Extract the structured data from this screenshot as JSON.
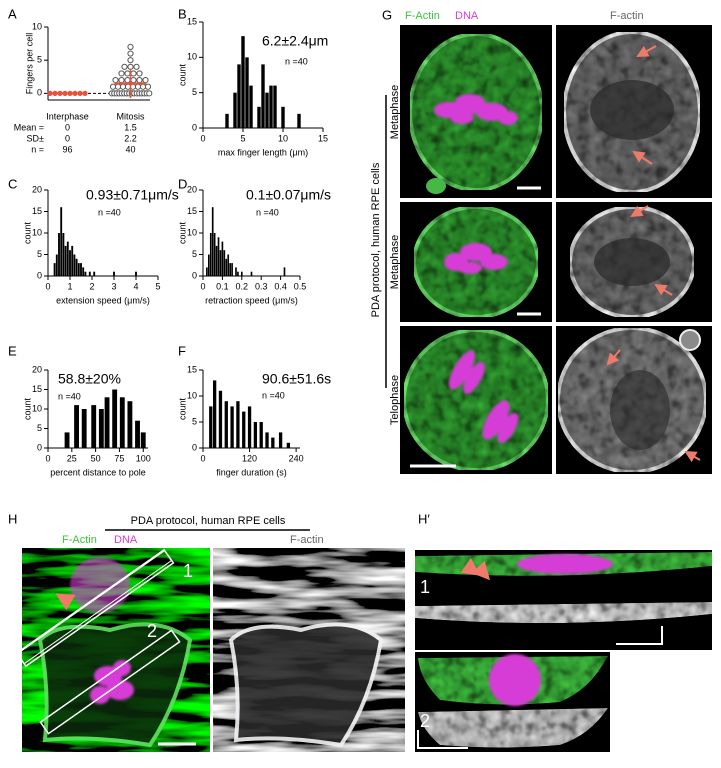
{
  "chart_data": [
    {
      "type": "dot",
      "panel": "A",
      "ylabel": "Fingers per cell",
      "categories": [
        "Interphase",
        "Mitosis"
      ],
      "values": [
        [
          0,
          0,
          0,
          0,
          0,
          0,
          0,
          0
        ],
        [
          0,
          0,
          0,
          0,
          0,
          0,
          0,
          0,
          0,
          0,
          0,
          0,
          0,
          0,
          0,
          0,
          1,
          1,
          1,
          1,
          1,
          1,
          1,
          1,
          2,
          2,
          2,
          2,
          2,
          2,
          3,
          3,
          3,
          3,
          4,
          4,
          4,
          5,
          6,
          7
        ]
      ],
      "colors": [
        "#e5533d",
        "#555555"
      ],
      "mean_color": "#e5533d",
      "stat_labels": [
        "Mean =",
        "SD±",
        "n ="
      ],
      "mean": [
        0,
        1.5
      ],
      "sd": [
        0,
        2.2
      ],
      "n": [
        96,
        40
      ],
      "hline": 0,
      "ylim": [
        -1,
        10
      ],
      "yticks": [
        0,
        5,
        10
      ]
    },
    {
      "type": "histogram",
      "panel": "B",
      "annotation": "6.2±2.4μm",
      "n_label": "n =40",
      "xlabel": "max finger length (μm)",
      "ylabel": "count",
      "color": "#000000",
      "x": [
        3,
        4,
        4.5,
        5,
        5.5,
        6,
        7,
        7.5,
        8,
        8.5,
        9,
        10,
        12
      ],
      "values": [
        2,
        5,
        9,
        13,
        10,
        6,
        3,
        9,
        5,
        6,
        6,
        3,
        2
      ],
      "xlim": [
        0,
        15
      ],
      "xticks": [
        0,
        5,
        10,
        15
      ],
      "ylim": [
        0,
        15
      ],
      "yticks": [
        0,
        5,
        10,
        15
      ]
    },
    {
      "type": "histogram",
      "panel": "C",
      "annotation": "0.93±0.71μm/s",
      "n_label": "n =40",
      "xlabel": "extension speed (μm/s)",
      "ylabel": "count",
      "color": "#000000",
      "x": [
        0.3,
        0.4,
        0.5,
        0.6,
        0.7,
        0.8,
        0.9,
        1.0,
        1.1,
        1.2,
        1.3,
        1.4,
        1.5,
        1.6,
        1.7,
        1.9,
        2.1,
        3.0,
        4.0
      ],
      "values": [
        3,
        5,
        10,
        16,
        10,
        7,
        8,
        6,
        7,
        5,
        4,
        3,
        3,
        2,
        1,
        1,
        1,
        1,
        1
      ],
      "xlim": [
        0,
        5
      ],
      "xticks": [
        0,
        1,
        2,
        3,
        4,
        5
      ],
      "ylim": [
        0,
        20
      ],
      "yticks": [
        0,
        5,
        10,
        15,
        20
      ]
    },
    {
      "type": "histogram",
      "panel": "D",
      "annotation": "0.1±0.07μm/s",
      "n_label": "n =40",
      "xlabel": "retraction speed (μm/s)",
      "ylabel": "count",
      "color": "#000000",
      "x": [
        0.02,
        0.03,
        0.04,
        0.05,
        0.06,
        0.07,
        0.08,
        0.09,
        0.1,
        0.11,
        0.12,
        0.13,
        0.14,
        0.15,
        0.17,
        0.18,
        0.2,
        0.25,
        0.42
      ],
      "values": [
        2,
        5,
        10,
        16,
        10,
        7,
        9,
        6,
        8,
        6,
        4,
        5,
        3,
        3,
        2,
        1,
        1,
        1,
        2
      ],
      "xlim": [
        0,
        0.5
      ],
      "xticks": [
        0,
        0.1,
        0.2,
        0.3,
        0.4,
        0.5
      ],
      "ylim": [
        0,
        20
      ],
      "yticks": [
        0,
        5,
        10,
        15,
        20
      ]
    },
    {
      "type": "histogram",
      "panel": "E",
      "annotation": "58.8±20%",
      "n_label": "n =40",
      "xlabel": "percent distance to pole",
      "ylabel": "count",
      "color": "#000000",
      "x": [
        20,
        30,
        38,
        48,
        56,
        62,
        70,
        78,
        86,
        94,
        100
      ],
      "values": [
        4,
        11,
        10,
        11,
        10,
        13,
        15,
        13,
        12,
        7,
        4
      ],
      "xlim": [
        0,
        105
      ],
      "xticks": [
        0,
        25,
        50,
        75,
        100
      ],
      "ylim": [
        0,
        20
      ],
      "yticks": [
        0,
        5,
        10,
        15,
        20
      ]
    },
    {
      "type": "histogram",
      "panel": "F",
      "annotation": "90.6±51.6s",
      "n_label": "n =40",
      "xlabel": "finger duration (s)",
      "ylabel": "count",
      "color": "#000000",
      "x": [
        20,
        30,
        45,
        60,
        75,
        90,
        105,
        120,
        135,
        150,
        165,
        180,
        200,
        220
      ],
      "values": [
        8,
        13,
        11,
        9,
        8,
        9,
        7,
        8,
        5,
        5,
        3,
        2,
        3,
        1
      ],
      "xlim": [
        0,
        250
      ],
      "xticks": [
        0,
        120,
        240
      ],
      "ylim": [
        0,
        15
      ],
      "yticks": [
        0,
        5,
        10,
        15
      ]
    }
  ],
  "figure": {
    "G": {
      "panel": "G",
      "channels": [
        "F-Actin",
        "DNA"
      ],
      "right_channel": "F-actin",
      "side_label": "PDA protocol, human RPE cells",
      "rows": [
        "Metaphase",
        "Metaphase",
        "Telophase"
      ]
    },
    "H": {
      "panel": "H",
      "title": "PDA protocol, human RPE cells",
      "channels": [
        "F-Actin",
        "DNA"
      ],
      "right_channel": "F-actin",
      "boxes": [
        "1",
        "2"
      ]
    },
    "H2": {
      "panel": "H′",
      "strips": [
        "1",
        "2"
      ]
    }
  }
}
